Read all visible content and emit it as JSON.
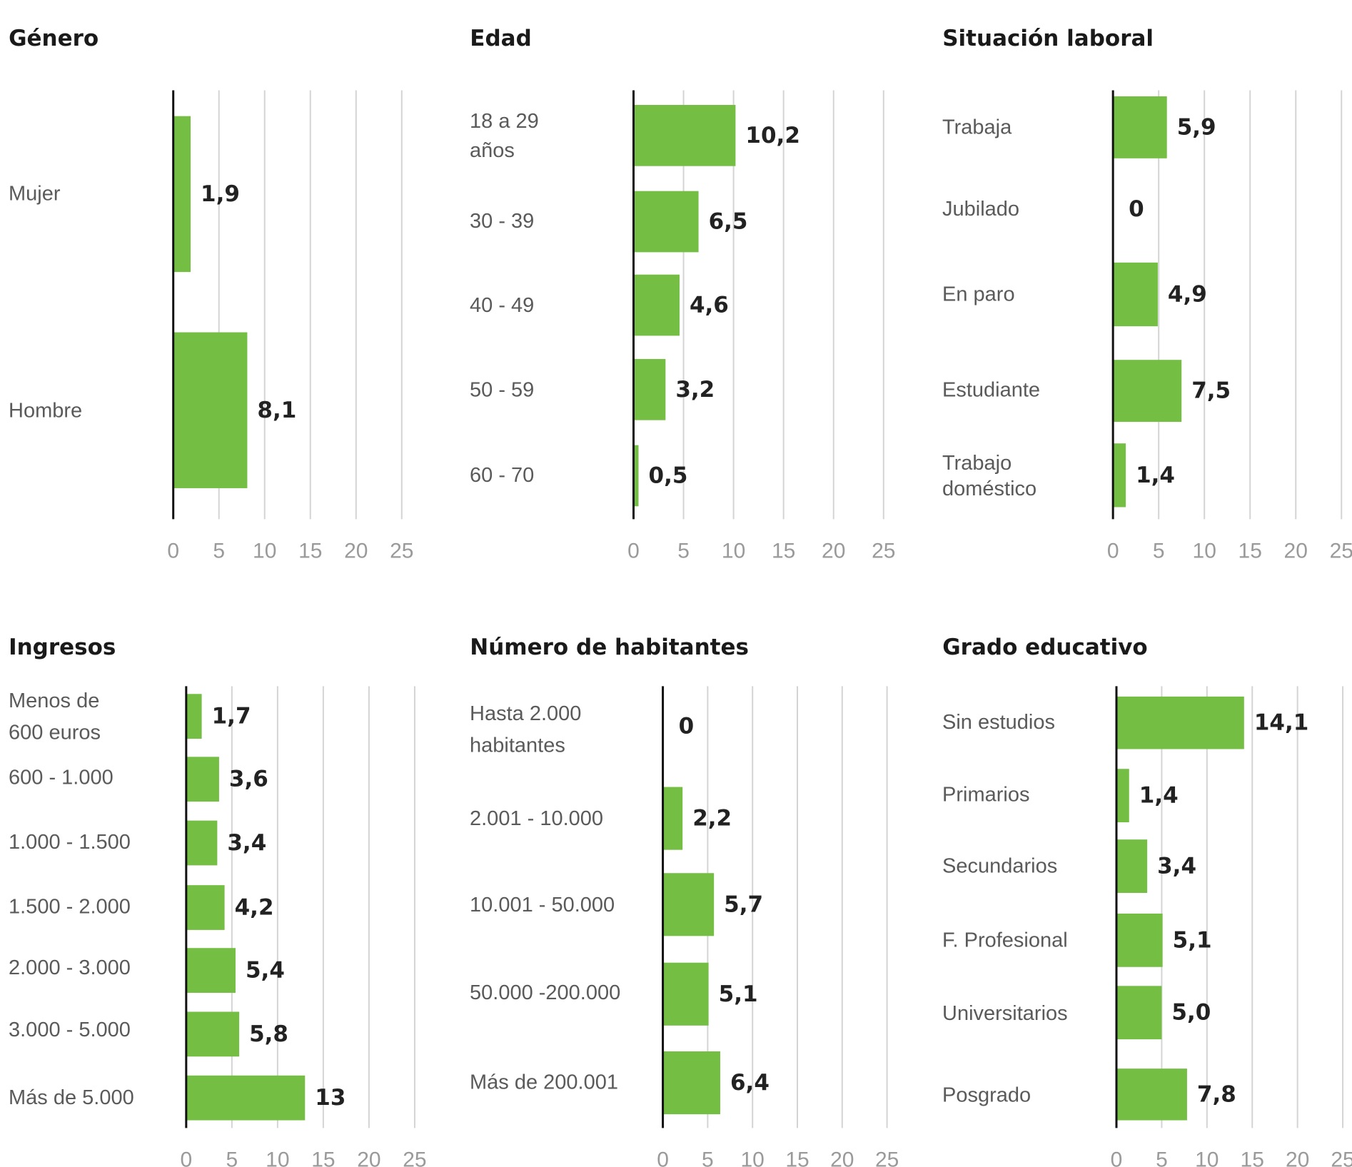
{
  "colors": {
    "bar": "#74be44",
    "axis": "#111111",
    "grid": "#d4d4d4",
    "label": "#5a5a5a",
    "value": "#222222",
    "tick": "#9a9a9a"
  },
  "chart_data": [
    {
      "type": "bar",
      "orientation": "horizontal",
      "title": "Género",
      "categories": [
        [
          "Mujer"
        ],
        [
          "Hombre"
        ]
      ],
      "values": [
        1.9,
        8.1
      ],
      "value_labels": [
        "1,9",
        "8,1"
      ],
      "xlim": [
        0,
        25
      ],
      "xticks": [
        "0",
        "5",
        "10",
        "15",
        "20",
        "25"
      ],
      "grid": true
    },
    {
      "type": "bar",
      "orientation": "horizontal",
      "title": "Edad",
      "categories": [
        [
          "18 a 29",
          "años"
        ],
        [
          "30 - 39"
        ],
        [
          "40 - 49"
        ],
        [
          "50 - 59"
        ],
        [
          "60 - 70"
        ]
      ],
      "values": [
        10.2,
        6.5,
        4.6,
        3.2,
        0.5
      ],
      "value_labels": [
        "10,2",
        "6,5",
        "4,6",
        "3,2",
        "0,5"
      ],
      "xlim": [
        0,
        25
      ],
      "xticks": [
        "0",
        "5",
        "10",
        "15",
        "20",
        "25"
      ],
      "grid": true
    },
    {
      "type": "bar",
      "orientation": "horizontal",
      "title": "Situación laboral",
      "categories": [
        [
          "Trabaja"
        ],
        [
          "Jubilado"
        ],
        [
          "En paro"
        ],
        [
          "Estudiante"
        ],
        [
          "Trabajo",
          "doméstico"
        ]
      ],
      "values": [
        5.9,
        0,
        4.9,
        7.5,
        1.4
      ],
      "value_labels": [
        "5,9",
        "0",
        "4,9",
        "7,5",
        "1,4"
      ],
      "xlim": [
        0,
        25
      ],
      "xticks": [
        "0",
        "5",
        "10",
        "15",
        "20",
        "25"
      ],
      "grid": true
    },
    {
      "type": "bar",
      "orientation": "horizontal",
      "title": "Ingresos",
      "categories": [
        [
          "Menos de",
          "600 euros"
        ],
        [
          "600 - 1.000"
        ],
        [
          "1.000 - 1.500"
        ],
        [
          "1.500 - 2.000"
        ],
        [
          "2.000 - 3.000"
        ],
        [
          "3.000 - 5.000"
        ],
        [
          "Más de 5.000"
        ]
      ],
      "values": [
        1.7,
        3.6,
        3.4,
        4.2,
        5.4,
        5.8,
        13
      ],
      "value_labels": [
        "1,7",
        "3,6",
        "3,4",
        "4,2",
        "5,4",
        "5,8",
        "13"
      ],
      "xlim": [
        0,
        25
      ],
      "xticks": [
        "0",
        "5",
        "10",
        "15",
        "20",
        "25"
      ],
      "grid": true
    },
    {
      "type": "bar",
      "orientation": "horizontal",
      "title": "Número de habitantes",
      "categories": [
        [
          "Hasta 2.000",
          "habitantes"
        ],
        [
          "2.001 - 10.000"
        ],
        [
          "10.001 - 50.000"
        ],
        [
          "50.000 -200.000"
        ],
        [
          "Más de 200.001"
        ]
      ],
      "values": [
        0,
        2.2,
        5.7,
        5.1,
        6.4
      ],
      "value_labels": [
        "0",
        "2,2",
        "5,7",
        "5,1",
        "6,4"
      ],
      "xlim": [
        0,
        25
      ],
      "xticks": [
        "0",
        "5",
        "10",
        "15",
        "20",
        "25"
      ],
      "grid": true
    },
    {
      "type": "bar",
      "orientation": "horizontal",
      "title": "Grado educativo",
      "categories": [
        [
          "Sin estudios"
        ],
        [
          "Primarios"
        ],
        [
          "Secundarios"
        ],
        [
          "F. Profesional"
        ],
        [
          "Universitarios"
        ],
        [
          "Posgrado"
        ]
      ],
      "values": [
        14.1,
        1.4,
        3.4,
        5.1,
        5.0,
        7.8
      ],
      "value_labels": [
        "14,1",
        "1,4",
        "3,4",
        "5,1",
        "5,0",
        "7,8"
      ],
      "xlim": [
        0,
        25
      ],
      "xticks": [
        "0",
        "5",
        "10",
        "15",
        "20",
        "25"
      ],
      "grid": true
    }
  ]
}
